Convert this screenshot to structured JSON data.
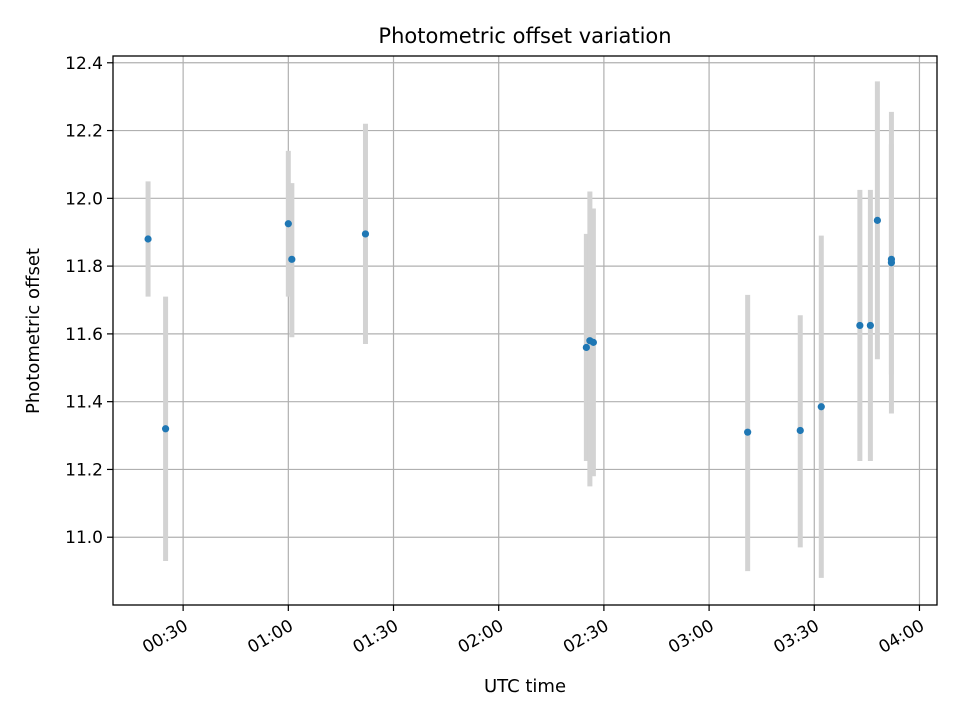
{
  "chart_data": {
    "type": "scatter",
    "title": "Photometric offset variation",
    "xlabel": "UTC time",
    "ylabel": "Photometric offset",
    "x_axis": {
      "type": "time",
      "ticks": [
        "00:30",
        "01:00",
        "01:30",
        "02:00",
        "02:30",
        "03:00",
        "03:30",
        "04:00"
      ],
      "range": [
        "00:10",
        "04:05"
      ],
      "tick_label_rotation_deg": 30
    },
    "y_axis": {
      "ticks": [
        "11.0",
        "11.2",
        "11.4",
        "11.6",
        "11.8",
        "12.0",
        "12.2",
        "12.4"
      ],
      "range": [
        10.8,
        12.42
      ]
    },
    "grid": true,
    "colors": {
      "point": "#1f77b4",
      "errorbar": "#d3d3d3",
      "grid": "#b0b0b0"
    },
    "series": [
      {
        "points": [
          {
            "x": "00:20",
            "y": 11.88,
            "y_low": 11.71,
            "y_high": 12.05
          },
          {
            "x": "00:25",
            "y": 11.32,
            "y_low": 10.93,
            "y_high": 11.71
          },
          {
            "x": "01:00",
            "y": 11.925,
            "y_low": 11.71,
            "y_high": 12.14
          },
          {
            "x": "01:01",
            "y": 11.82,
            "y_low": 11.59,
            "y_high": 12.045
          },
          {
            "x": "01:22",
            "y": 11.895,
            "y_low": 11.57,
            "y_high": 12.22
          },
          {
            "x": "02:25",
            "y": 11.56,
            "y_low": 11.225,
            "y_high": 11.895
          },
          {
            "x": "02:26",
            "y": 11.58,
            "y_low": 11.15,
            "y_high": 12.02
          },
          {
            "x": "02:27",
            "y": 11.575,
            "y_low": 11.18,
            "y_high": 11.97
          },
          {
            "x": "03:11",
            "y": 11.31,
            "y_low": 10.9,
            "y_high": 11.715
          },
          {
            "x": "03:26",
            "y": 11.315,
            "y_low": 10.97,
            "y_high": 11.655
          },
          {
            "x": "03:32",
            "y": 11.385,
            "y_low": 10.88,
            "y_high": 11.89
          },
          {
            "x": "03:43",
            "y": 11.625,
            "y_low": 11.225,
            "y_high": 12.025
          },
          {
            "x": "03:46",
            "y": 11.625,
            "y_low": 11.225,
            "y_high": 12.025
          },
          {
            "x": "03:48",
            "y": 11.935,
            "y_low": 11.525,
            "y_high": 12.345
          },
          {
            "x": "03:52",
            "y": 11.81,
            "y_low": 11.365,
            "y_high": 12.255
          },
          {
            "x": "03:52",
            "y": 11.82,
            "y_low": 11.48,
            "y_high": 12.16
          }
        ]
      }
    ]
  }
}
